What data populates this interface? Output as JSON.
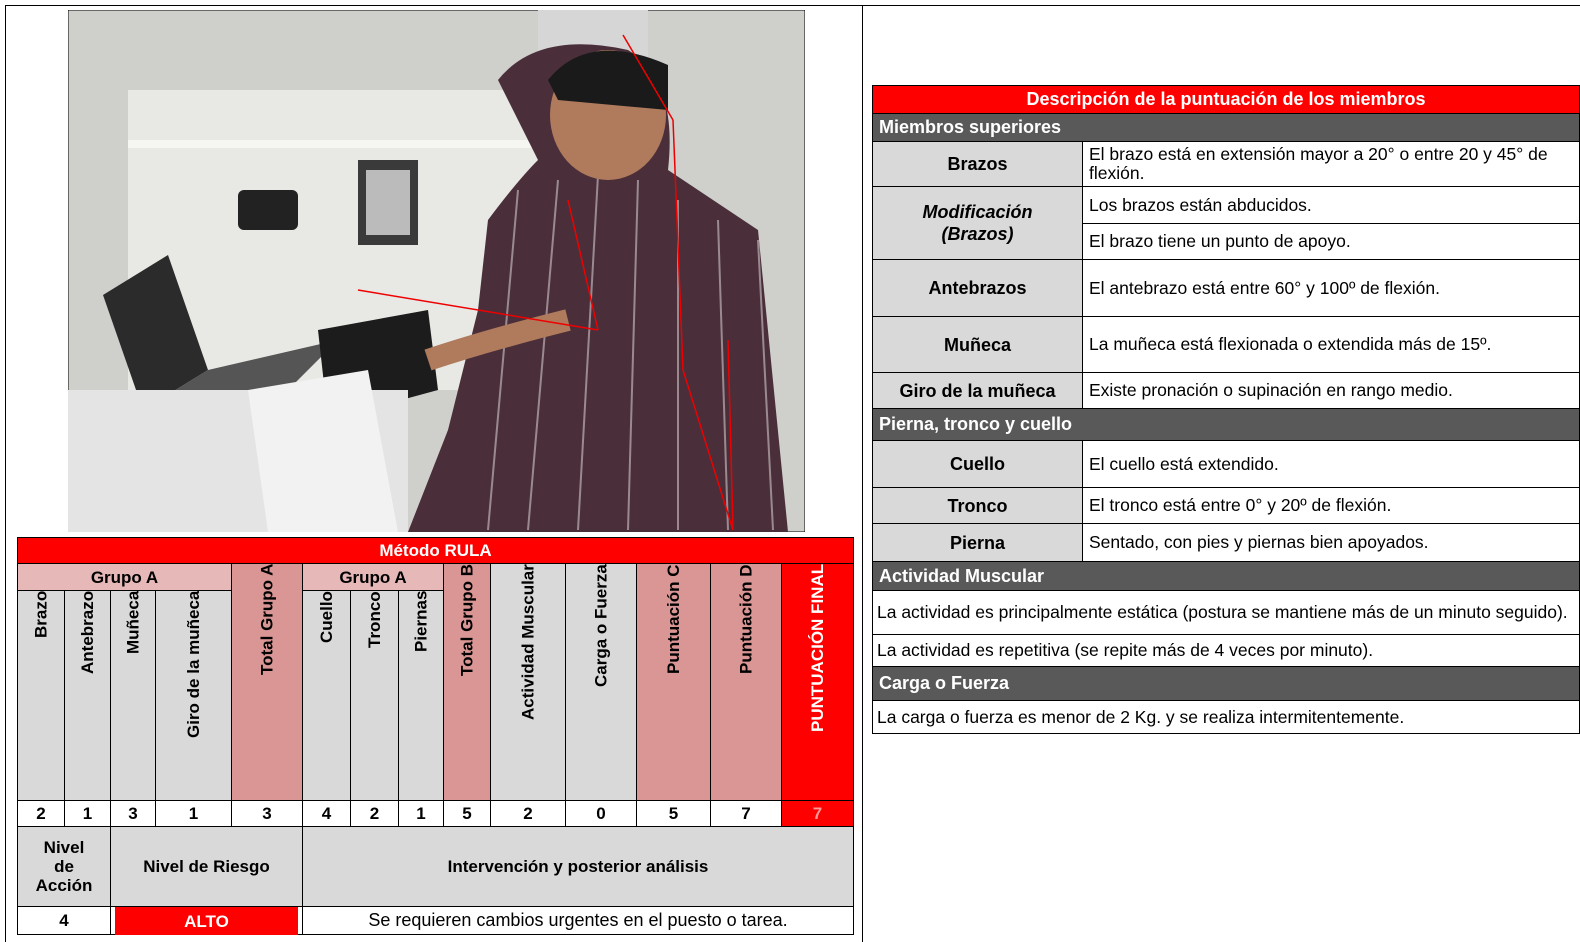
{
  "rula": {
    "title": "Método RULA",
    "groups": [
      "Grupo A",
      "Grupo A"
    ],
    "columns": [
      "Brazo",
      "Antebrazo",
      "Muñeca",
      "Giro de la muñeca",
      "Total Grupo A",
      "Cuello",
      "Tronco",
      "Piernas",
      "Total Grupo B",
      "Actividad Muscular",
      "Carga o Fuerza",
      "Puntuación C",
      "Puntuación D",
      "PUNTUACIÓN FINAL"
    ],
    "values": [
      2,
      1,
      3,
      1,
      3,
      4,
      2,
      1,
      5,
      2,
      0,
      5,
      7,
      7
    ],
    "risk_headers": [
      "Nivel de Acción",
      "Nivel de Riesgo",
      "Intervención y posterior análisis"
    ],
    "risk_values": [
      "4",
      "ALTO",
      "Se requieren cambios urgentes en el puesto o tarea."
    ]
  },
  "description": {
    "title": "Descripción de la puntuación de los miembros",
    "sections": [
      {
        "heading": "Miembros superiores",
        "rows": [
          {
            "label": "Brazos",
            "texts": [
              "El brazo está en extensión mayor a 20° o entre 20 y 45° de flexión."
            ]
          },
          {
            "label": "Modificación\n(Brazos)",
            "texts": [
              "Los brazos están abducidos.",
              "El brazo tiene un punto de apoyo."
            ]
          },
          {
            "label": "Antebrazos",
            "texts": [
              "El antebrazo está entre 60° y 100º de flexión."
            ]
          },
          {
            "label": "Muñeca",
            "texts": [
              "La muñeca está flexionada o extendida más de 15º."
            ]
          },
          {
            "label": "Giro de la muñeca",
            "texts": [
              "Existe pronación o supinación en rango medio."
            ]
          }
        ]
      },
      {
        "heading": "Pierna, tronco y cuello",
        "rows": [
          {
            "label": "Cuello",
            "texts": [
              "El cuello está extendido."
            ]
          },
          {
            "label": "Tronco",
            "texts": [
              "El tronco está entre 0° y 20º de flexión."
            ]
          },
          {
            "label": "Pierna",
            "texts": [
              "Sentado, con pies y piernas bien apoyados."
            ]
          }
        ]
      },
      {
        "heading": "Actividad Muscular",
        "texts": [
          "La actividad es principalmente estática (postura se mantiene más de un minuto seguido).",
          "La actividad es repetitiva (se repite más de 4 veces por minuto)."
        ]
      },
      {
        "heading": "Carga o Fuerza",
        "texts": [
          "La carga o fuerza es menor de 2 Kg. y se realiza intermitentemente."
        ]
      }
    ]
  }
}
